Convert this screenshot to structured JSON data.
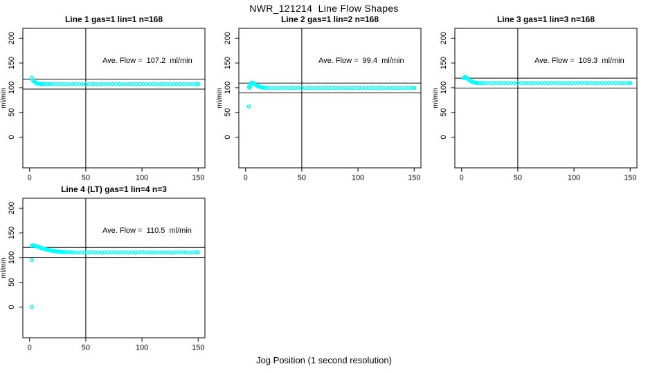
{
  "figure": {
    "title": "NWR_121214  Line Flow Shapes",
    "xlabel": "Jog Position (1 second resolution)"
  },
  "style": {
    "point_color": "#00ffff",
    "axis_color": "#000000",
    "background": "#ffffff"
  },
  "axes": {
    "ylabel": "ml/min",
    "x_ticks": [
      0,
      50,
      100,
      150
    ],
    "y_ticks": [
      0,
      50,
      100,
      150,
      200
    ],
    "xlim": [
      -6,
      156
    ],
    "ylim": [
      -62,
      220
    ],
    "vline_x": 50,
    "grid": false
  },
  "chart_data": [
    {
      "type": "scatter",
      "title": "Line 1 gas=1 lin=1 n=168",
      "ave_flow": 107.2,
      "ave_label": "Ave. Flow =  107.2  ml/min",
      "hlines": [
        117.2,
        97.2
      ],
      "vline_x": 50,
      "points": [
        [
          2,
          120.2
        ],
        [
          3,
          115.3
        ],
        [
          4,
          112.4
        ],
        [
          5,
          110.5
        ],
        [
          6,
          109.3
        ],
        [
          7,
          108.5
        ],
        [
          8,
          108.0
        ],
        [
          9,
          107.7
        ],
        [
          10,
          107.5
        ],
        [
          11,
          107.4
        ],
        [
          12,
          107.3
        ],
        [
          14,
          107.3
        ],
        [
          16,
          107.2
        ],
        [
          18,
          107.4
        ],
        [
          20,
          107.3
        ],
        [
          23,
          107.0
        ],
        [
          26,
          107.4
        ],
        [
          29,
          107.1
        ],
        [
          32,
          107.3
        ],
        [
          35,
          106.9
        ],
        [
          38,
          107.2
        ],
        [
          41,
          107.5
        ],
        [
          44,
          107.1
        ],
        [
          47,
          107.3
        ],
        [
          50,
          107.0
        ],
        [
          53,
          107.2
        ],
        [
          56,
          107.4
        ],
        [
          59,
          107.1
        ],
        [
          62,
          106.9
        ],
        [
          65,
          107.3
        ],
        [
          68,
          107.2
        ],
        [
          71,
          107.0
        ],
        [
          74,
          107.4
        ],
        [
          77,
          107.2
        ],
        [
          80,
          107.1
        ],
        [
          83,
          107.3
        ],
        [
          86,
          106.9
        ],
        [
          89,
          107.2
        ],
        [
          92,
          107.4
        ],
        [
          95,
          107.0
        ],
        [
          98,
          107.2
        ],
        [
          101,
          107.3
        ],
        [
          104,
          107.1
        ],
        [
          107,
          107.2
        ],
        [
          110,
          107.4
        ],
        [
          113,
          106.9
        ],
        [
          116,
          107.1
        ],
        [
          119,
          107.3
        ],
        [
          122,
          107.2
        ],
        [
          125,
          107.0
        ],
        [
          128,
          107.3
        ],
        [
          131,
          107.1
        ],
        [
          134,
          107.2
        ],
        [
          137,
          107.4
        ],
        [
          140,
          107.0
        ],
        [
          143,
          107.2
        ],
        [
          146,
          107.1
        ],
        [
          149,
          107.3
        ],
        [
          150,
          107.2
        ]
      ]
    },
    {
      "type": "scatter",
      "title": "Line 2 gas=1 lin=2 n=168",
      "ave_flow": 99.4,
      "ave_label": "Ave. Flow =  99.4  ml/min",
      "hlines": [
        109.4,
        89.4
      ],
      "vline_x": 50,
      "points": [
        [
          3,
          62
        ],
        [
          3,
          101
        ],
        [
          3.5,
          99.8
        ],
        [
          4,
          103.5
        ],
        [
          4.5,
          106
        ],
        [
          5,
          108.8
        ],
        [
          5.5,
          110
        ],
        [
          6,
          110
        ],
        [
          7,
          109
        ],
        [
          8,
          107.5
        ],
        [
          9,
          106
        ],
        [
          10,
          104.5
        ],
        [
          11,
          103.2
        ],
        [
          12,
          102.2
        ],
        [
          13,
          101.4
        ],
        [
          14,
          100.8
        ],
        [
          15,
          100.4
        ],
        [
          16,
          100.1
        ],
        [
          18,
          99.8
        ],
        [
          20,
          99.6
        ],
        [
          23,
          99.3
        ],
        [
          26,
          99.5
        ],
        [
          29,
          99.2
        ],
        [
          32,
          99.5
        ],
        [
          35,
          99.3
        ],
        [
          38,
          99.6
        ],
        [
          41,
          99.2
        ],
        [
          44,
          99.4
        ],
        [
          47,
          99.5
        ],
        [
          50,
          99.3
        ],
        [
          53,
          99.4
        ],
        [
          56,
          99.2
        ],
        [
          59,
          99.5
        ],
        [
          62,
          99.4
        ],
        [
          65,
          99.3
        ],
        [
          68,
          99.5
        ],
        [
          71,
          99.2
        ],
        [
          74,
          99.4
        ],
        [
          77,
          99.6
        ],
        [
          80,
          99.3
        ],
        [
          83,
          99.4
        ],
        [
          86,
          99.2
        ],
        [
          89,
          99.5
        ],
        [
          92,
          99.3
        ],
        [
          95,
          99.4
        ],
        [
          98,
          99.6
        ],
        [
          101,
          99.3
        ],
        [
          104,
          99.4
        ],
        [
          107,
          99.2
        ],
        [
          110,
          99.5
        ],
        [
          113,
          99.4
        ],
        [
          116,
          99.3
        ],
        [
          119,
          99.5
        ],
        [
          122,
          99.2
        ],
        [
          125,
          99.4
        ],
        [
          128,
          99.6
        ],
        [
          131,
          99.3
        ],
        [
          134,
          99.4
        ],
        [
          137,
          99.2
        ],
        [
          140,
          99.5
        ],
        [
          143,
          99.3
        ],
        [
          146,
          99.4
        ],
        [
          149,
          99.5
        ],
        [
          150,
          99.4
        ]
      ]
    },
    {
      "type": "scatter",
      "title": "Line 3 gas=1 lin=3 n=168",
      "ave_flow": 109.3,
      "ave_label": "Ave. Flow =  109.3  ml/min",
      "hlines": [
        119.3,
        99.3
      ],
      "vline_x": 50,
      "points": [
        [
          2,
          119
        ],
        [
          2.5,
          121
        ],
        [
          3,
          122
        ],
        [
          3.5,
          121.6
        ],
        [
          4,
          121
        ],
        [
          5,
          119.5
        ],
        [
          6,
          117.5
        ],
        [
          7,
          115.5
        ],
        [
          8,
          113.8
        ],
        [
          9,
          112.4
        ],
        [
          10,
          111.4
        ],
        [
          11,
          110.7
        ],
        [
          12,
          110.2
        ],
        [
          13,
          109.9
        ],
        [
          14,
          109.7
        ],
        [
          16,
          109.5
        ],
        [
          18,
          109.5
        ],
        [
          20,
          109.4
        ],
        [
          23,
          109.6
        ],
        [
          26,
          109.3
        ],
        [
          29,
          109.5
        ],
        [
          32,
          109.2
        ],
        [
          35,
          109.4
        ],
        [
          38,
          109.6
        ],
        [
          41,
          109.3
        ],
        [
          44,
          109.5
        ],
        [
          47,
          109.2
        ],
        [
          50,
          109.4
        ],
        [
          53,
          109.5
        ],
        [
          56,
          109.3
        ],
        [
          59,
          109.4
        ],
        [
          62,
          109.2
        ],
        [
          65,
          109.5
        ],
        [
          68,
          109.4
        ],
        [
          71,
          109.3
        ],
        [
          74,
          109.5
        ],
        [
          77,
          109.2
        ],
        [
          80,
          109.4
        ],
        [
          83,
          109.6
        ],
        [
          86,
          109.3
        ],
        [
          89,
          109.4
        ],
        [
          92,
          109.2
        ],
        [
          95,
          109.5
        ],
        [
          98,
          109.3
        ],
        [
          101,
          109.4
        ],
        [
          104,
          109.6
        ],
        [
          107,
          109.3
        ],
        [
          110,
          109.4
        ],
        [
          113,
          109.2
        ],
        [
          116,
          109.5
        ],
        [
          119,
          109.4
        ],
        [
          122,
          109.3
        ],
        [
          125,
          109.5
        ],
        [
          128,
          109.2
        ],
        [
          131,
          109.4
        ],
        [
          134,
          109.6
        ],
        [
          137,
          109.3
        ],
        [
          140,
          109.4
        ],
        [
          143,
          109.2
        ],
        [
          146,
          109.5
        ],
        [
          149,
          109.3
        ],
        [
          150,
          109.4
        ]
      ]
    },
    {
      "type": "scatter",
      "title": "Line 4 (LT) gas=1 lin=4 n=3",
      "ave_flow": 110.5,
      "ave_label": "Ave. Flow =  110.5  ml/min",
      "hlines": [
        120.5,
        100.5
      ],
      "vline_x": 50,
      "points": [
        [
          2,
          0.5
        ],
        [
          2,
          95
        ],
        [
          2,
          124
        ],
        [
          3,
          125
        ],
        [
          4,
          124.6
        ],
        [
          5,
          123.8
        ],
        [
          6,
          123
        ],
        [
          7,
          122.2
        ],
        [
          8,
          121.4
        ],
        [
          9,
          120.6
        ],
        [
          10,
          119.8
        ],
        [
          11,
          119.1
        ],
        [
          12,
          118.4
        ],
        [
          13,
          117.7
        ],
        [
          14,
          117
        ],
        [
          15,
          116.4
        ],
        [
          16,
          115.8
        ],
        [
          17,
          115.3
        ],
        [
          18,
          114.8
        ],
        [
          19,
          114.3
        ],
        [
          20,
          113.9
        ],
        [
          21,
          113.5
        ],
        [
          22,
          113.1
        ],
        [
          23,
          112.8
        ],
        [
          24,
          112.5
        ],
        [
          25,
          112.2
        ],
        [
          26,
          112
        ],
        [
          27,
          111.8
        ],
        [
          28,
          111.6
        ],
        [
          29,
          111.4
        ],
        [
          30,
          111.3
        ],
        [
          32,
          111.1
        ],
        [
          34,
          110.9
        ],
        [
          36,
          110.8
        ],
        [
          38,
          110.6
        ],
        [
          40,
          110.5
        ],
        [
          43,
          110.2
        ],
        [
          46,
          110.7
        ],
        [
          49,
          110.1
        ],
        [
          52,
          110.5
        ],
        [
          55,
          110.9
        ],
        [
          58,
          110.2
        ],
        [
          61,
          110.6
        ],
        [
          64,
          110.0
        ],
        [
          67,
          110.5
        ],
        [
          70,
          110.8
        ],
        [
          73,
          110.3
        ],
        [
          76,
          110.6
        ],
        [
          79,
          110.1
        ],
        [
          82,
          110.4
        ],
        [
          85,
          110.7
        ],
        [
          88,
          110.2
        ],
        [
          91,
          110.5
        ],
        [
          94,
          109.9
        ],
        [
          97,
          110.4
        ],
        [
          100,
          110.8
        ],
        [
          103,
          110.3
        ],
        [
          106,
          110.5
        ],
        [
          109,
          110.1
        ],
        [
          112,
          110.6
        ],
        [
          115,
          110.3
        ],
        [
          118,
          110.7
        ],
        [
          121,
          110.2
        ],
        [
          124,
          110.4
        ],
        [
          127,
          110.0
        ],
        [
          130,
          110.5
        ],
        [
          133,
          110.8
        ],
        [
          136,
          110.3
        ],
        [
          139,
          110.6
        ],
        [
          142,
          110.1
        ],
        [
          145,
          110.4
        ],
        [
          148,
          110.7
        ],
        [
          150,
          110.3
        ]
      ]
    }
  ]
}
